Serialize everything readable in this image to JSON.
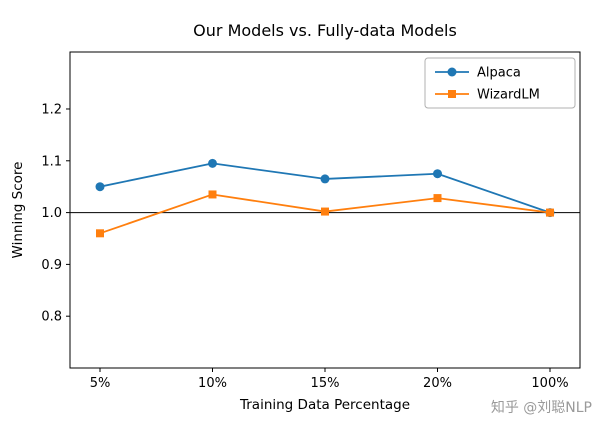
{
  "watermark": "知乎 @刘聪NLP",
  "chart_data": {
    "type": "line",
    "title": "Our Models vs. Fully-data Models",
    "xlabel": "Training Data Percentage",
    "ylabel": "Winning Score",
    "categories": [
      "5%",
      "10%",
      "15%",
      "20%",
      "100%"
    ],
    "yticks": [
      0.8,
      0.9,
      1.0,
      1.1,
      1.2
    ],
    "ylim": [
      0.7,
      1.31
    ],
    "reference_line": 1.0,
    "grid": false,
    "legend_position": "top-right",
    "series": [
      {
        "name": "Alpaca",
        "color": "#1f77b4",
        "marker": "circle",
        "values": [
          1.05,
          1.095,
          1.065,
          1.075,
          1.0
        ]
      },
      {
        "name": "WizardLM",
        "color": "#ff7f0e",
        "marker": "square",
        "values": [
          0.96,
          1.035,
          1.002,
          1.028,
          1.0
        ]
      }
    ]
  }
}
